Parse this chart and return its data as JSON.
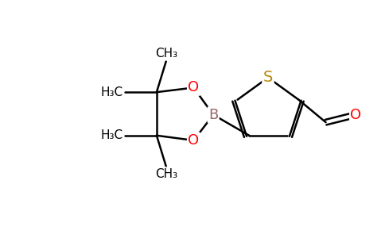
{
  "background_color": "#ffffff",
  "bond_color": "#000000",
  "S_color": "#b8860b",
  "O_color": "#ff0000",
  "B_color": "#996666",
  "C_color": "#000000",
  "bond_width": 1.8,
  "font_size_atom": 13,
  "font_size_methyl": 11,
  "figsize": [
    4.84,
    3.0
  ],
  "dpi": 100,
  "xlim": [
    0,
    10
  ],
  "ylim": [
    0,
    6.2
  ]
}
